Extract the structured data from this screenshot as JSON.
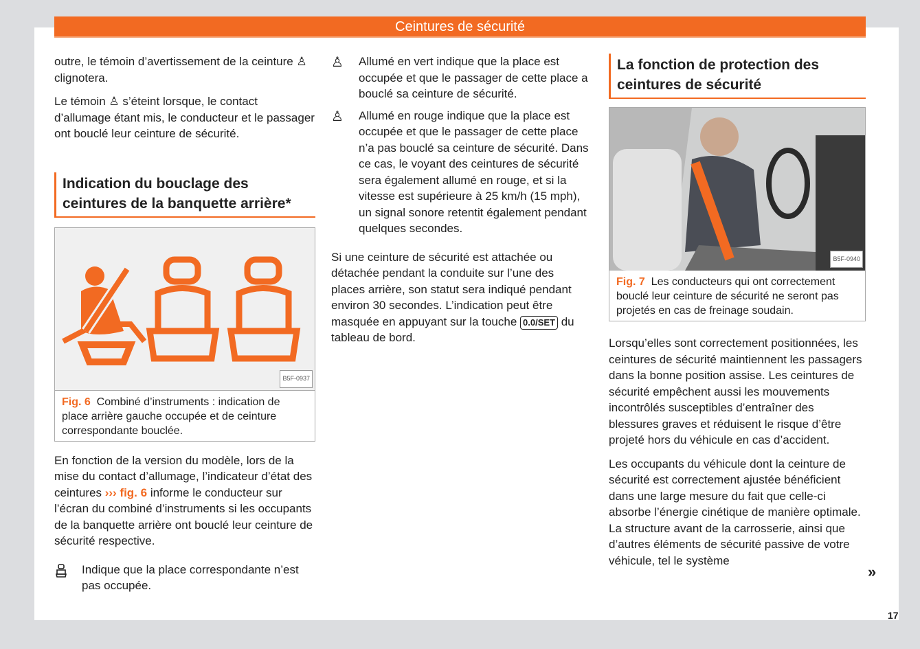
{
  "header": {
    "title": "Ceintures de sécurité"
  },
  "col1": {
    "p1": "outre, le témoin d’avertissement de la ceinture ",
    "p1b": " clignotera.",
    "p2a": "Le témoin ",
    "p2b": " s’éteint lorsque, le contact d’allumage étant mis, le conducteur et le passager ont bouclé leur ceinture de sécurité.",
    "heading": "Indication du bouclage des ceintures de la banquette arrière*",
    "fig": {
      "code": "B5F-0937",
      "label": "Fig. 6",
      "caption": "Combiné d’instruments : indication de place arrière gauche occupée et de ceinture correspondante bouclée.",
      "colors": {
        "seat": "#f26a22"
      }
    },
    "p3a": "En fonction de la version du modèle, lors de la mise du contact d’allumage, l’indicateur d’état des ceintures ",
    "p3ref": "››› fig. 6",
    "p3b": " informe le conducteur sur l’écran du combiné d’instruments si les occupants de la banquette arrière ont bouclé leur ceinture de sécurité respective.",
    "item": {
      "icon": "empty-seat-icon",
      "text": "Indique que la place correspondante n’est pas occupée."
    }
  },
  "col2": {
    "items": [
      {
        "icon": "seatbelt-fastened-icon",
        "text": "Allumé en vert indique que la place est occupée et que le passager de cette place a bouclé sa ceinture de sécurité."
      },
      {
        "icon": "seatbelt-warning-icon",
        "text": "Allumé en rouge indique que la place est occupée et que le passager de cette place n’a pas bouclé sa ceinture de sécurité. Dans ce cas, le voyant des ceintures de sécurité sera également allumé en rouge, et si la vitesse est supérieure à 25 km/h (15 mph), un signal sonore retentit également pendant quelques secondes."
      }
    ],
    "p1": "Si une ceinture de sécurité est attachée ou détachée pendant la conduite sur l’une des places arrière, son statut sera indiqué pendant environ 30 secondes. L’indication peut être masquée en appuyant sur la touche ",
    "key": "0.0/SET",
    "p1b": " du tableau de bord."
  },
  "col3": {
    "heading": "La fonction de protection des ceintures de sécurité",
    "fig": {
      "code": "B5F-0940",
      "label": "Fig. 7",
      "caption": "Les conducteurs qui ont correctement bouclé leur ceinture de sécurité ne seront pas projetés en cas de freinage soudain."
    },
    "p1": "Lorsqu’elles sont correctement positionnées, les ceintures de sécurité maintiennent les passagers dans la bonne position assise. Les ceintures de sécurité empêchent aussi les mouvements incontrôlés susceptibles d’entraîner des blessures graves et réduisent le risque d’être projeté hors du véhicule en cas d’accident.",
    "p2": "Les occupants du véhicule dont la ceinture de sécurité est correctement ajustée bénéficient dans une large mesure du fait que celle-ci absorbe l’énergie cinétique de manière optimale. La structure avant de la carrosserie, ainsi que d’autres éléments de sécurité passive de votre véhicule, tel le système",
    "continue": "»"
  },
  "page_number": "17"
}
